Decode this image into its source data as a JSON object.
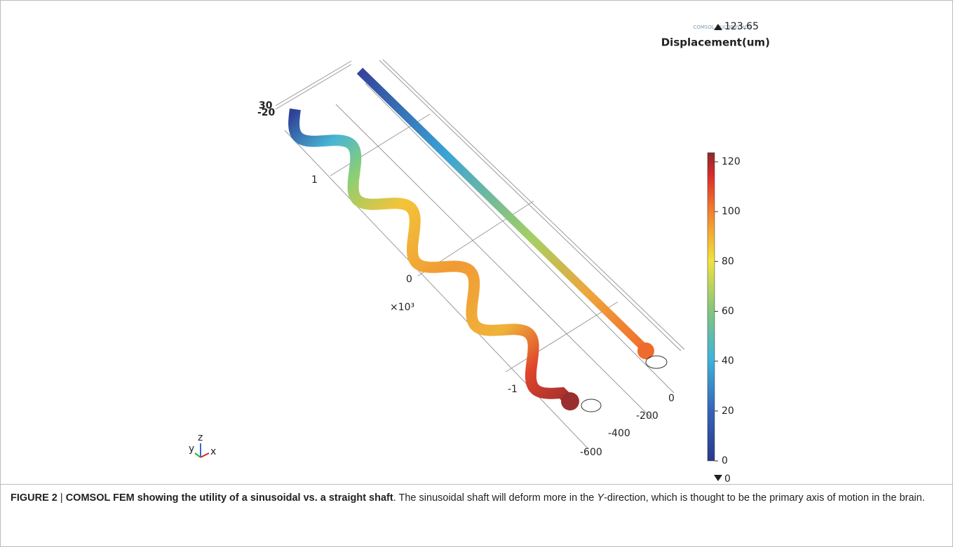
{
  "figure": {
    "logo": "COMSOL MULTIPHYSICS",
    "colorbar": {
      "title": "Displacement(um)",
      "max": 123.65,
      "min": 0,
      "lim": [
        0,
        123.65
      ],
      "ticks": [
        0,
        20,
        40,
        60,
        80,
        100,
        120
      ]
    },
    "z_ticks": [
      "30",
      "-20"
    ],
    "x_ticks": [
      "1",
      "0",
      "-1"
    ],
    "x_multiplier": "×10³",
    "y_ticks": [
      "0",
      "-200",
      "-400",
      "-600"
    ],
    "triad": [
      "y",
      "z",
      "x"
    ]
  },
  "caption": {
    "label": "FIGURE 2",
    "title": "COMSOL FEM showing the utility of a sinusoidal vs. a straight shaft",
    "text_before": ". The sinusoidal shaft will deform more in the ",
    "emphasis": "Y",
    "text_after": "-direction, which is thought to be the primary axis of motion in the brain."
  }
}
